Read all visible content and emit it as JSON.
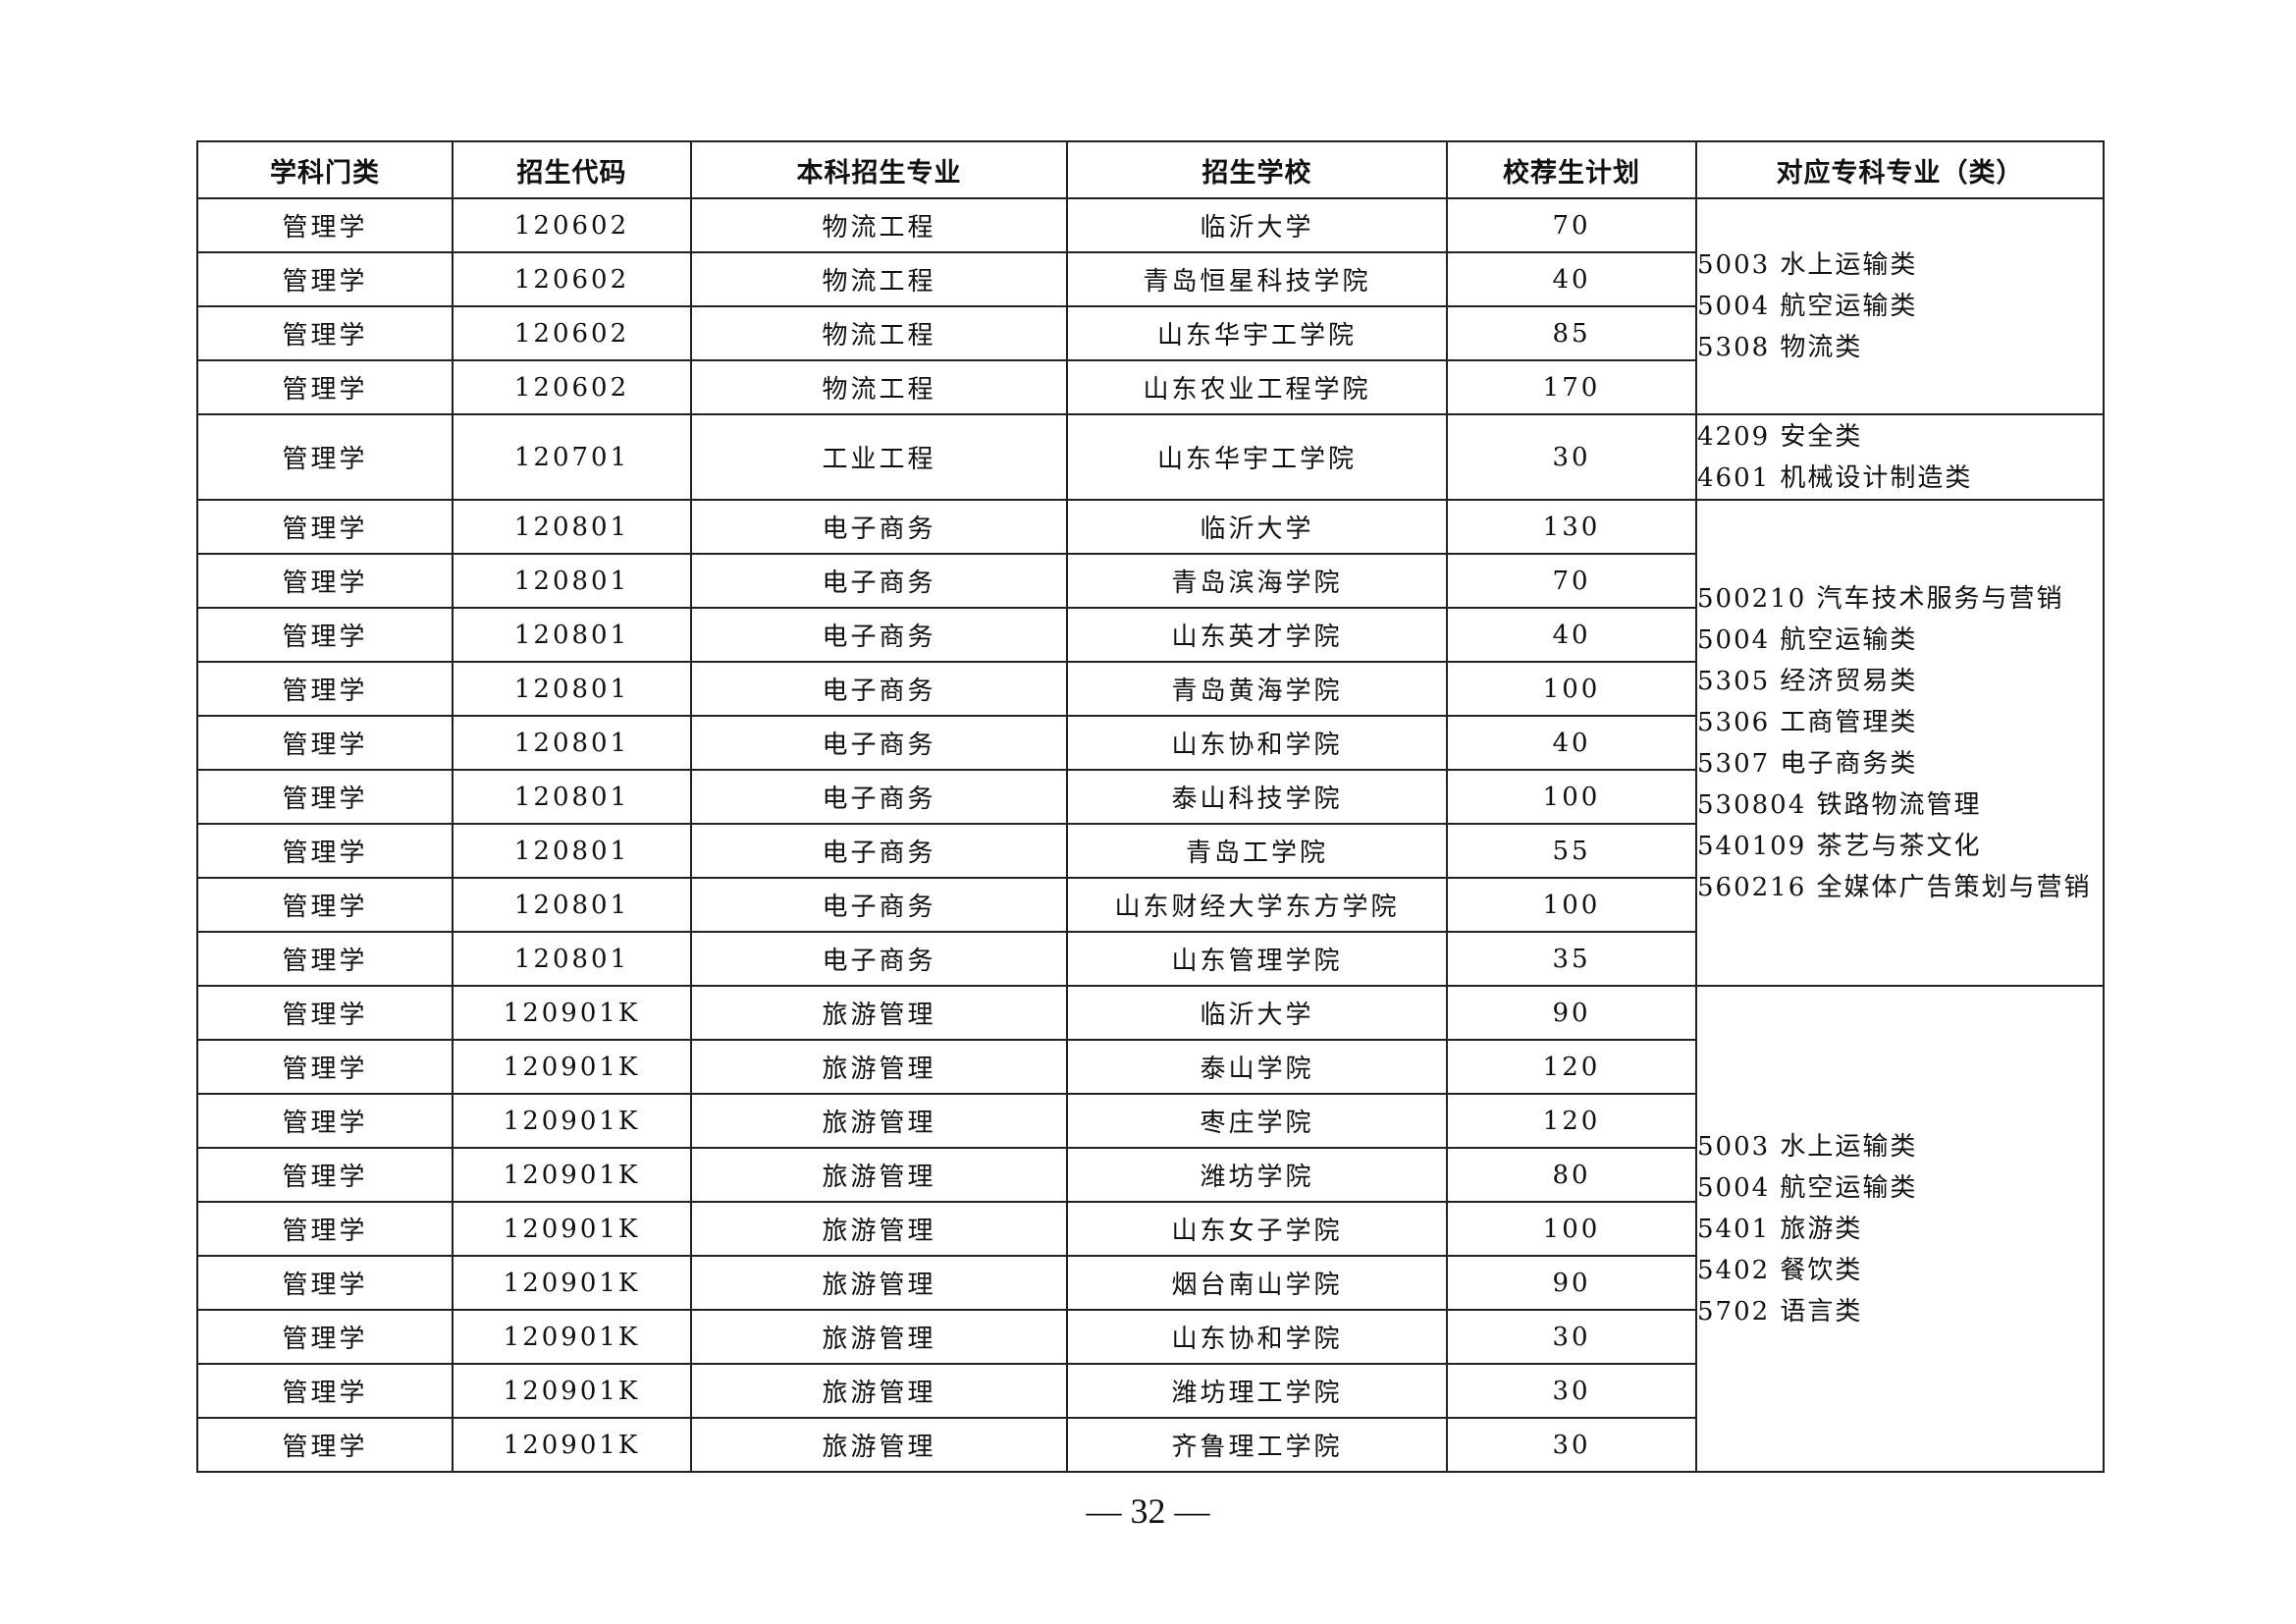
{
  "headers": [
    "学科门类",
    "招生代码",
    "本科招生专业",
    "招生学校",
    "校荐生计划",
    "对应专科专业（类）"
  ],
  "groups": [
    {
      "rows": [
        [
          "管理学",
          "120602",
          "物流工程",
          "临沂大学",
          "70"
        ],
        [
          "管理学",
          "120602",
          "物流工程",
          "青岛恒星科技学院",
          "40"
        ],
        [
          "管理学",
          "120602",
          "物流工程",
          "山东华宇工学院",
          "85"
        ],
        [
          "管理学",
          "120602",
          "物流工程",
          "山东农业工程学院",
          "170"
        ]
      ],
      "specialties": [
        "5003 水上运输类",
        "5004 航空运输类",
        "5308 物流类"
      ]
    },
    {
      "rows": [
        [
          "管理学",
          "120701",
          "工业工程",
          "山东华宇工学院",
          "30"
        ]
      ],
      "specialties": [
        "4209 安全类",
        "4601 机械设计制造类"
      ]
    },
    {
      "rows": [
        [
          "管理学",
          "120801",
          "电子商务",
          "临沂大学",
          "130"
        ],
        [
          "管理学",
          "120801",
          "电子商务",
          "青岛滨海学院",
          "70"
        ],
        [
          "管理学",
          "120801",
          "电子商务",
          "山东英才学院",
          "40"
        ],
        [
          "管理学",
          "120801",
          "电子商务",
          "青岛黄海学院",
          "100"
        ],
        [
          "管理学",
          "120801",
          "电子商务",
          "山东协和学院",
          "40"
        ],
        [
          "管理学",
          "120801",
          "电子商务",
          "泰山科技学院",
          "100"
        ],
        [
          "管理学",
          "120801",
          "电子商务",
          "青岛工学院",
          "55"
        ],
        [
          "管理学",
          "120801",
          "电子商务",
          "山东财经大学东方学院",
          "100"
        ],
        [
          "管理学",
          "120801",
          "电子商务",
          "山东管理学院",
          "35"
        ]
      ],
      "specialties": [
        "500210 汽车技术服务与营销",
        "5004 航空运输类",
        "5305 经济贸易类",
        "5306 工商管理类",
        "5307 电子商务类",
        "530804 铁路物流管理",
        "540109 茶艺与茶文化",
        "560216 全媒体广告策划与营销"
      ]
    },
    {
      "rows": [
        [
          "管理学",
          "120901K",
          "旅游管理",
          "临沂大学",
          "90"
        ],
        [
          "管理学",
          "120901K",
          "旅游管理",
          "泰山学院",
          "120"
        ],
        [
          "管理学",
          "120901K",
          "旅游管理",
          "枣庄学院",
          "120"
        ],
        [
          "管理学",
          "120901K",
          "旅游管理",
          "潍坊学院",
          "80"
        ],
        [
          "管理学",
          "120901K",
          "旅游管理",
          "山东女子学院",
          "100"
        ],
        [
          "管理学",
          "120901K",
          "旅游管理",
          "烟台南山学院",
          "90"
        ],
        [
          "管理学",
          "120901K",
          "旅游管理",
          "山东协和学院",
          "30"
        ],
        [
          "管理学",
          "120901K",
          "旅游管理",
          "潍坊理工学院",
          "30"
        ],
        [
          "管理学",
          "120901K",
          "旅游管理",
          "齐鲁理工学院",
          "30"
        ]
      ],
      "specialties": [
        "5003 水上运输类",
        "5004 航空运输类",
        "5401 旅游类",
        "5402 餐饮类",
        "5702 语言类"
      ]
    }
  ],
  "page_number": "— 32 —"
}
